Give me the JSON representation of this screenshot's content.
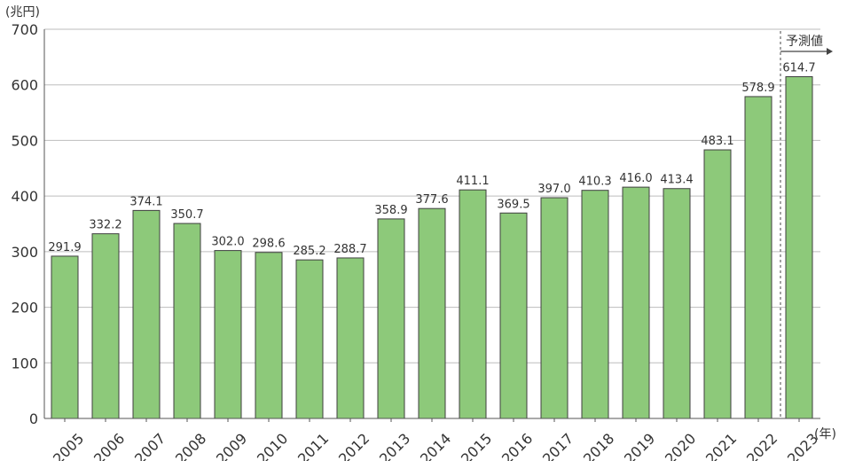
{
  "chart_data": {
    "type": "bar",
    "title": "",
    "y_unit": "(兆円)",
    "x_unit": "(年)",
    "ylim": [
      0,
      700
    ],
    "yticks": [
      0,
      100,
      200,
      300,
      400,
      500,
      600,
      700
    ],
    "grid": true,
    "forecast_label": "予測値",
    "forecast_from": "2023",
    "categories": [
      "2005",
      "2006",
      "2007",
      "2008",
      "2009",
      "2010",
      "2011",
      "2012",
      "2013",
      "2014",
      "2015",
      "2016",
      "2017",
      "2018",
      "2019",
      "2020",
      "2021",
      "2022",
      "2023"
    ],
    "values": [
      291.9,
      332.2,
      374.1,
      350.7,
      302.0,
      298.6,
      285.2,
      288.7,
      358.9,
      377.6,
      411.1,
      369.5,
      397.0,
      410.3,
      416.0,
      413.4,
      483.1,
      578.9,
      614.7
    ],
    "value_labels": [
      "291.9",
      "332.2",
      "374.1",
      "350.7",
      "302.0",
      "298.6",
      "285.2",
      "288.7",
      "358.9",
      "377.6",
      "411.1",
      "369.5",
      "397.0",
      "410.3",
      "416.0",
      "413.4",
      "483.1",
      "578.9",
      "614.7"
    ],
    "colors": {
      "bar": "#8dc97a",
      "bar_stroke": "#3f3f3f",
      "grid": "#bdbdbd",
      "axis": "#555555"
    }
  }
}
